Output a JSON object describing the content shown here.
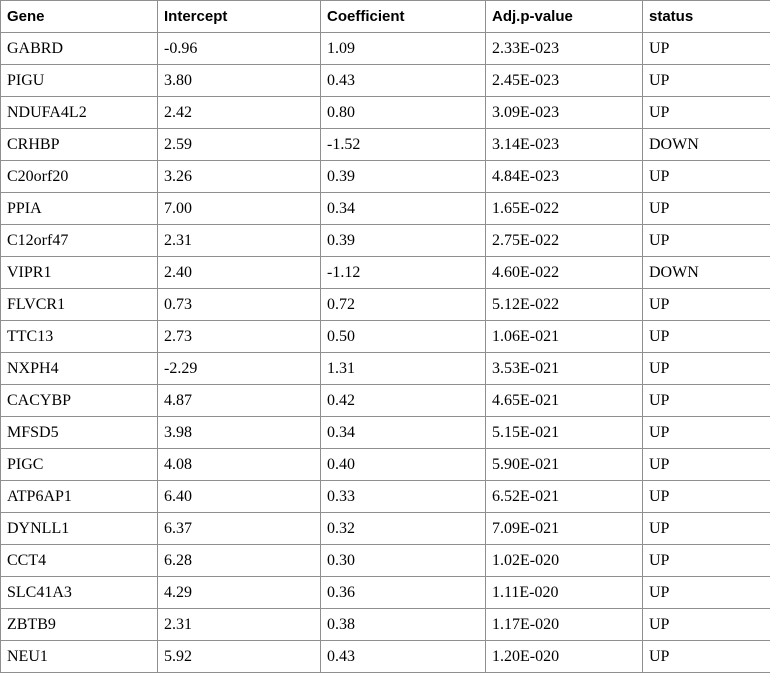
{
  "table": {
    "columns": [
      "Gene",
      "Intercept",
      "Coefficient",
      "Adj.p-value",
      "status"
    ],
    "column_keys": [
      "gene",
      "intercept",
      "coefficient",
      "adj-p-value",
      "status"
    ],
    "rows": [
      [
        "GABRD",
        "-0.96",
        "1.09",
        "2.33E-023",
        "UP"
      ],
      [
        "PIGU",
        "3.80",
        "0.43",
        "2.45E-023",
        "UP"
      ],
      [
        "NDUFA4L2",
        "2.42",
        "0.80",
        "3.09E-023",
        "UP"
      ],
      [
        "CRHBP",
        "2.59",
        "-1.52",
        "3.14E-023",
        "DOWN"
      ],
      [
        "C20orf20",
        "3.26",
        "0.39",
        "4.84E-023",
        "UP"
      ],
      [
        "PPIA",
        "7.00",
        "0.34",
        "1.65E-022",
        "UP"
      ],
      [
        "C12orf47",
        "2.31",
        "0.39",
        "2.75E-022",
        "UP"
      ],
      [
        "VIPR1",
        "2.40",
        "-1.12",
        "4.60E-022",
        "DOWN"
      ],
      [
        "FLVCR1",
        "0.73",
        "0.72",
        "5.12E-022",
        "UP"
      ],
      [
        "TTC13",
        "2.73",
        "0.50",
        "1.06E-021",
        "UP"
      ],
      [
        "NXPH4",
        "-2.29",
        "1.31",
        "3.53E-021",
        "UP"
      ],
      [
        "CACYBP",
        "4.87",
        "0.42",
        "4.65E-021",
        "UP"
      ],
      [
        "MFSD5",
        "3.98",
        "0.34",
        "5.15E-021",
        "UP"
      ],
      [
        "PIGC",
        "4.08",
        "0.40",
        "5.90E-021",
        "UP"
      ],
      [
        "ATP6AP1",
        "6.40",
        "0.33",
        "6.52E-021",
        "UP"
      ],
      [
        "DYNLL1",
        "6.37",
        "0.32",
        "7.09E-021",
        "UP"
      ],
      [
        "CCT4",
        "6.28",
        "0.30",
        "1.02E-020",
        "UP"
      ],
      [
        "SLC41A3",
        "4.29",
        "0.36",
        "1.11E-020",
        "UP"
      ],
      [
        "ZBTB9",
        "2.31",
        "0.38",
        "1.17E-020",
        "UP"
      ],
      [
        "NEU1",
        "5.92",
        "0.43",
        "1.20E-020",
        "UP"
      ]
    ],
    "border_color": "#8f8f8f",
    "text_color": "#000000",
    "background_color": "#ffffff"
  }
}
